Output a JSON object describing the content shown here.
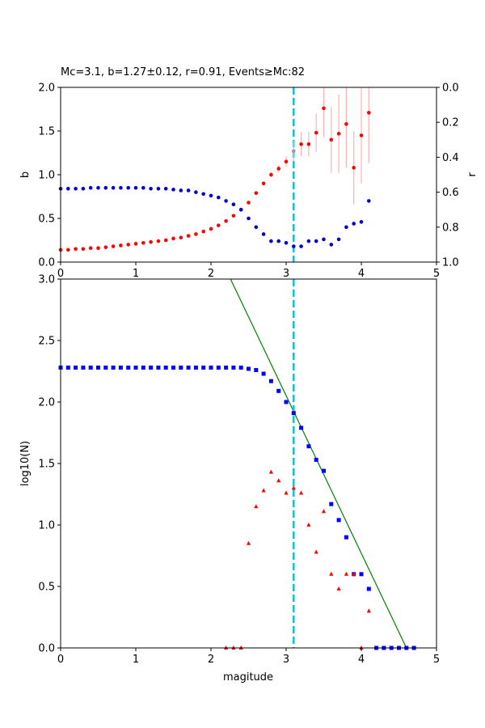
{
  "chart_data": [
    {
      "type": "scatter",
      "title": "Mc=3.1, b=1.27±0.12, r=0.91, Events≥Mc:82",
      "xlabel": "",
      "ylabel": "b",
      "ylabel_right": "r",
      "xlim": [
        0,
        5
      ],
      "ylim": [
        0,
        2
      ],
      "ylim_right": [
        1,
        0
      ],
      "xticks": [
        "0",
        "1",
        "2",
        "3",
        "4",
        "5"
      ],
      "yticks": [
        "0.0",
        "0.5",
        "1.0",
        "1.5",
        "2.0"
      ],
      "yticks_right": [
        "0.0",
        "0.2",
        "0.4",
        "0.6",
        "0.8",
        "1.0"
      ],
      "mc": 3.1,
      "mc_color": "#17becf",
      "series": [
        {
          "axis": "left",
          "color": "#ff0000",
          "errcolor": "#ffb0b0",
          "x": [
            0.0,
            0.1,
            0.2,
            0.3,
            0.4,
            0.5,
            0.6,
            0.7,
            0.8,
            0.9,
            1.0,
            1.1,
            1.2,
            1.3,
            1.4,
            1.5,
            1.6,
            1.7,
            1.8,
            1.9,
            2.0,
            2.1,
            2.2,
            2.3,
            2.4,
            2.5,
            2.6,
            2.7,
            2.8,
            2.9,
            3.0,
            3.1,
            3.2,
            3.3,
            3.4,
            3.5,
            3.6,
            3.7,
            3.8,
            3.9,
            4.0,
            4.1
          ],
          "y": [
            0.14,
            0.14,
            0.15,
            0.15,
            0.16,
            0.16,
            0.17,
            0.18,
            0.19,
            0.2,
            0.21,
            0.22,
            0.23,
            0.24,
            0.25,
            0.27,
            0.28,
            0.3,
            0.32,
            0.35,
            0.38,
            0.42,
            0.47,
            0.53,
            0.6,
            0.68,
            0.79,
            0.9,
            1.0,
            1.07,
            1.15,
            1.27,
            1.35,
            1.35,
            1.48,
            1.76,
            1.4,
            1.47,
            1.58,
            1.08,
            1.45,
            1.71
          ],
          "err": [
            0,
            0,
            0,
            0,
            0,
            0,
            0,
            0,
            0,
            0,
            0,
            0,
            0,
            0,
            0,
            0,
            0,
            0,
            0,
            0,
            0,
            0,
            0,
            0,
            0,
            0,
            0,
            0,
            0.03,
            0.04,
            0.06,
            0.12,
            0.14,
            0.14,
            0.22,
            0.33,
            0.38,
            0.45,
            0.5,
            0.42,
            0.55,
            0.58
          ]
        },
        {
          "axis": "right",
          "color": "#0000cc",
          "x": [
            0.0,
            0.1,
            0.2,
            0.3,
            0.4,
            0.5,
            0.6,
            0.7,
            0.8,
            0.9,
            1.0,
            1.1,
            1.2,
            1.3,
            1.4,
            1.5,
            1.6,
            1.7,
            1.8,
            1.9,
            2.0,
            2.1,
            2.2,
            2.3,
            2.4,
            2.5,
            2.6,
            2.7,
            2.8,
            2.9,
            3.0,
            3.1,
            3.2,
            3.3,
            3.4,
            3.5,
            3.6,
            3.7,
            3.8,
            3.9,
            4.0,
            4.1
          ],
          "y": [
            0.58,
            0.58,
            0.58,
            0.58,
            0.575,
            0.575,
            0.575,
            0.575,
            0.575,
            0.575,
            0.575,
            0.575,
            0.58,
            0.58,
            0.58,
            0.585,
            0.59,
            0.59,
            0.6,
            0.61,
            0.62,
            0.63,
            0.65,
            0.67,
            0.7,
            0.75,
            0.8,
            0.84,
            0.88,
            0.88,
            0.89,
            0.91,
            0.91,
            0.88,
            0.88,
            0.87,
            0.9,
            0.87,
            0.8,
            0.78,
            0.77,
            0.65
          ]
        }
      ]
    },
    {
      "type": "scatter",
      "title": "",
      "xlabel": "magitude",
      "ylabel": "log10(N)",
      "xlim": [
        0,
        5
      ],
      "ylim": [
        0,
        3
      ],
      "xticks": [
        "0",
        "1",
        "2",
        "3",
        "4",
        "5"
      ],
      "yticks": [
        "0.0",
        "0.5",
        "1.0",
        "1.5",
        "2.0",
        "2.5",
        "3.0"
      ],
      "mc": 3.1,
      "mc_color": "#17becf",
      "fit_line": {
        "color": "#008000",
        "x": [
          2.26,
          4.6
        ],
        "y": [
          3.0,
          0.0
        ]
      },
      "series": [
        {
          "marker": "square",
          "color": "#0000ff",
          "x": [
            0.0,
            0.1,
            0.2,
            0.3,
            0.4,
            0.5,
            0.6,
            0.7,
            0.8,
            0.9,
            1.0,
            1.1,
            1.2,
            1.3,
            1.4,
            1.5,
            1.6,
            1.7,
            1.8,
            1.9,
            2.0,
            2.1,
            2.2,
            2.3,
            2.4,
            2.5,
            2.6,
            2.7,
            2.8,
            2.9,
            3.0,
            3.1,
            3.2,
            3.3,
            3.4,
            3.5,
            3.6,
            3.7,
            3.8,
            3.9,
            4.0,
            4.1,
            4.2,
            4.3,
            4.4,
            4.5,
            4.6,
            4.7
          ],
          "y": [
            2.28,
            2.28,
            2.28,
            2.28,
            2.28,
            2.28,
            2.28,
            2.28,
            2.28,
            2.28,
            2.28,
            2.28,
            2.28,
            2.28,
            2.28,
            2.28,
            2.28,
            2.28,
            2.28,
            2.28,
            2.28,
            2.28,
            2.28,
            2.28,
            2.28,
            2.27,
            2.26,
            2.23,
            2.17,
            2.09,
            2.0,
            1.91,
            1.79,
            1.64,
            1.53,
            1.44,
            1.17,
            1.04,
            0.9,
            0.6,
            0.6,
            0.48,
            0.0,
            0.0,
            0.0,
            0.0,
            0.0,
            0.0
          ]
        },
        {
          "marker": "triangle",
          "color": "#ff0000",
          "x": [
            2.2,
            2.3,
            2.4,
            2.5,
            2.6,
            2.7,
            2.8,
            2.9,
            3.0,
            3.1,
            3.2,
            3.3,
            3.4,
            3.5,
            3.6,
            3.7,
            3.8,
            3.9,
            4.0,
            4.1
          ],
          "y": [
            0.0,
            0.0,
            0.0,
            0.85,
            1.15,
            1.28,
            1.43,
            1.36,
            1.26,
            1.3,
            1.26,
            1.0,
            0.78,
            1.11,
            0.6,
            0.48,
            0.6,
            0.6,
            0.0,
            0.3
          ]
        }
      ]
    }
  ]
}
